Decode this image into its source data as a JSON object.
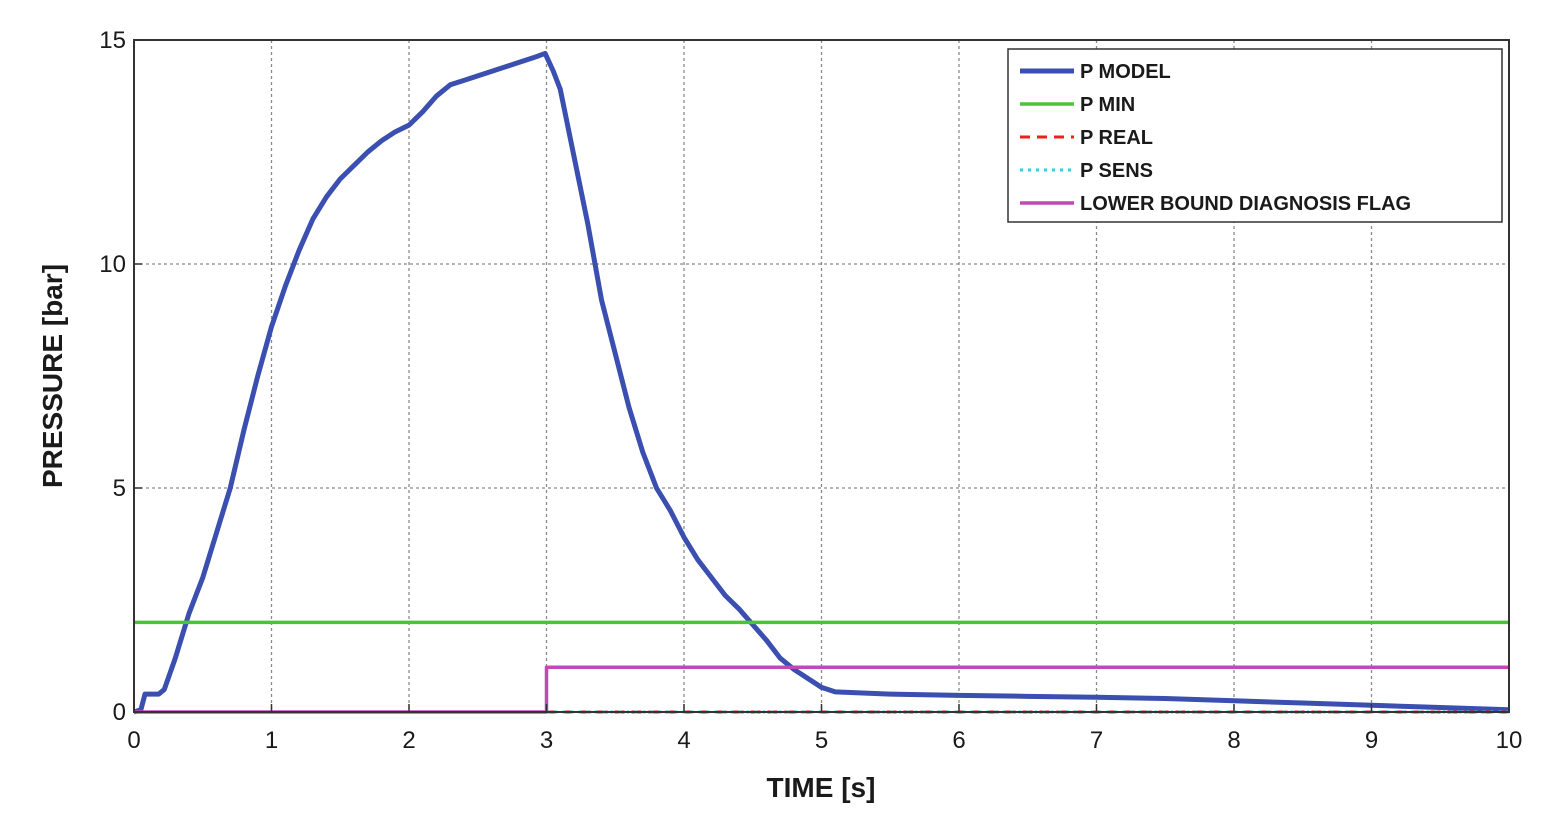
{
  "chart_data": {
    "type": "line",
    "title": "",
    "xlabel": "TIME [s]",
    "ylabel": "PRESSURE [bar]",
    "xlim": [
      0,
      10
    ],
    "ylim": [
      0,
      15
    ],
    "xticks": [
      0,
      1,
      2,
      3,
      4,
      5,
      6,
      7,
      8,
      9,
      10
    ],
    "yticks": [
      0,
      5,
      10,
      15
    ],
    "grid": true,
    "legend_position": "top-right",
    "series": [
      {
        "name": "P MODEL",
        "color": "#3a4fb0",
        "style": "solid",
        "x": [
          0,
          0.05,
          0.08,
          0.18,
          0.22,
          0.3,
          0.4,
          0.5,
          0.6,
          0.7,
          0.8,
          0.9,
          1.0,
          1.1,
          1.2,
          1.3,
          1.4,
          1.5,
          1.6,
          1.7,
          1.8,
          1.9,
          2.0,
          2.1,
          2.2,
          2.3,
          2.4,
          2.5,
          2.6,
          2.7,
          2.8,
          2.9,
          2.99,
          3.05,
          3.1,
          3.2,
          3.3,
          3.4,
          3.5,
          3.6,
          3.7,
          3.8,
          3.9,
          4.0,
          4.1,
          4.2,
          4.3,
          4.4,
          4.5,
          4.6,
          4.7,
          4.8,
          4.9,
          5.0,
          5.1,
          5.5,
          6.0,
          6.5,
          7.0,
          7.5,
          8.0,
          8.5,
          9.0,
          9.5,
          10.0
        ],
        "y": [
          0,
          0.05,
          0.4,
          0.4,
          0.5,
          1.2,
          2.2,
          3.0,
          4.0,
          5.0,
          6.3,
          7.5,
          8.6,
          9.5,
          10.3,
          11.0,
          11.5,
          11.9,
          12.2,
          12.5,
          12.75,
          12.95,
          13.1,
          13.4,
          13.75,
          14.0,
          14.1,
          14.2,
          14.3,
          14.4,
          14.5,
          14.6,
          14.7,
          14.3,
          13.9,
          12.4,
          10.9,
          9.2,
          8.0,
          6.8,
          5.8,
          5.0,
          4.5,
          3.9,
          3.4,
          3.0,
          2.6,
          2.3,
          1.95,
          1.6,
          1.2,
          0.95,
          0.75,
          0.55,
          0.45,
          0.4,
          0.37,
          0.35,
          0.33,
          0.3,
          0.25,
          0.2,
          0.15,
          0.1,
          0.05
        ]
      },
      {
        "name": "P MIN",
        "color": "#4cc23a",
        "style": "solid",
        "x": [
          0,
          10
        ],
        "y": [
          2,
          2
        ]
      },
      {
        "name": "P REAL",
        "color": "#e8231f",
        "style": "dashed",
        "x": [
          3,
          10
        ],
        "y": [
          0,
          0
        ]
      },
      {
        "name": "P SENS",
        "color": "#3ec6e8",
        "style": "dotted",
        "x": [
          3,
          10
        ],
        "y": [
          0,
          0
        ]
      },
      {
        "name": "LOWER BOUND DIAGNOSIS FLAG",
        "color": "#c248b8",
        "style": "solid",
        "x": [
          0,
          3,
          3,
          10
        ],
        "y": [
          0,
          0,
          1,
          1
        ]
      }
    ]
  }
}
